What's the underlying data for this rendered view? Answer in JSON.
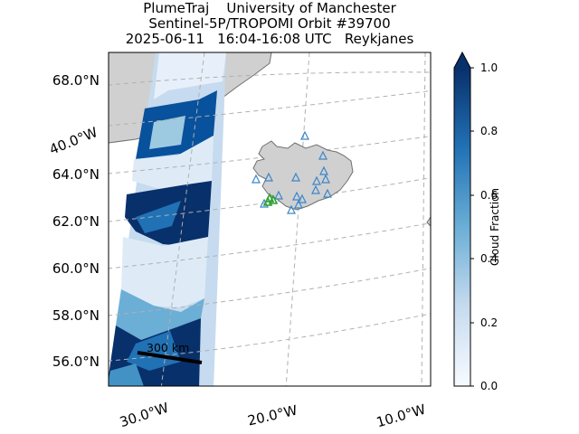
{
  "title": {
    "line1": "PlumeTraj    University of Manchester",
    "line2": "Sentinel-5P/TROPOMI Orbit #39700",
    "line3": "2025-06-11   16:04-16:08 UTC   Reykjanes"
  },
  "map": {
    "lat_labels": [
      "68.0°N",
      "64.0°N",
      "62.0°N",
      "60.0°N",
      "58.0°N",
      "56.0°N"
    ],
    "lon_labels": [
      "30.0°W",
      "20.0°W",
      "10.0°W"
    ],
    "left_lon_label": "40.0°W",
    "scale_bar_label": "300 km",
    "colors": {
      "land": "#d0d0d0",
      "coast": "#707070",
      "grid": "#b0b0b0",
      "volcano_marker": "#3a86c8",
      "vent_marker": "#2ca02c",
      "scale_bar": "#000000"
    }
  },
  "colorbar": {
    "label": "Cloud Fraction",
    "ticks": [
      "1.0",
      "0.8",
      "0.6",
      "0.4",
      "0.2",
      "0.0"
    ],
    "colormap": "Blues",
    "range": [
      0.0,
      1.0
    ]
  }
}
